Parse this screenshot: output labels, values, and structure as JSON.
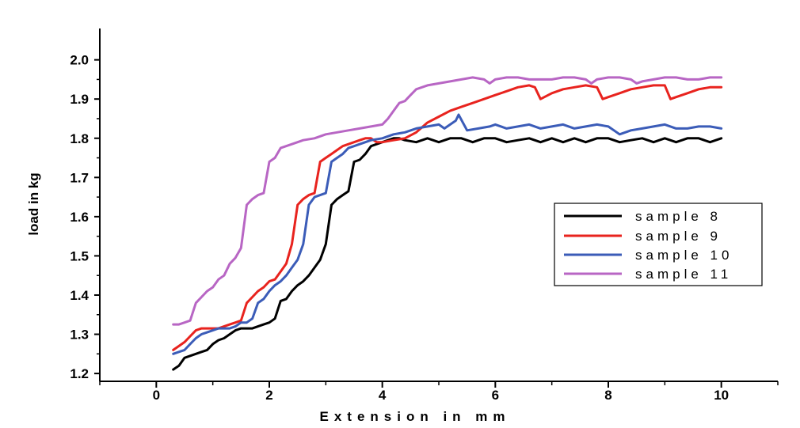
{
  "chart_data": {
    "type": "line",
    "title": "",
    "xlabel": "Extension in mm",
    "ylabel": "load in kg",
    "xlim": [
      -1,
      11
    ],
    "ylim": [
      1.18,
      2.08
    ],
    "xticks": [
      0,
      2,
      4,
      6,
      8,
      10
    ],
    "yticks": [
      1.2,
      1.3,
      1.4,
      1.5,
      1.6,
      1.7,
      1.8,
      1.9,
      2.0
    ],
    "ytick_labels": [
      "1.2",
      "1.3",
      "1.4",
      "1.5",
      "1.6",
      "1.7",
      "1.8",
      "1.9",
      "2.0"
    ],
    "legend_position": "right",
    "grid": false,
    "series": [
      {
        "name": "sample 8",
        "color": "#000000",
        "x": [
          0.3,
          0.4,
          0.5,
          0.6,
          0.7,
          0.8,
          0.9,
          1.0,
          1.1,
          1.2,
          1.3,
          1.4,
          1.5,
          1.6,
          1.7,
          1.8,
          1.9,
          2.0,
          2.1,
          2.2,
          2.3,
          2.4,
          2.5,
          2.6,
          2.7,
          2.8,
          2.9,
          3.0,
          3.1,
          3.2,
          3.3,
          3.4,
          3.5,
          3.6,
          3.7,
          3.8,
          3.9,
          4.0,
          4.1,
          4.2,
          4.3,
          4.4,
          4.6,
          4.8,
          5.0,
          5.2,
          5.4,
          5.6,
          5.8,
          6.0,
          6.2,
          6.4,
          6.6,
          6.8,
          7.0,
          7.2,
          7.4,
          7.6,
          7.8,
          8.0,
          8.2,
          8.4,
          8.6,
          8.8,
          9.0,
          9.2,
          9.4,
          9.6,
          9.8,
          10.0
        ],
        "values": [
          1.21,
          1.22,
          1.24,
          1.245,
          1.25,
          1.255,
          1.26,
          1.275,
          1.285,
          1.29,
          1.3,
          1.31,
          1.315,
          1.315,
          1.315,
          1.32,
          1.325,
          1.33,
          1.34,
          1.385,
          1.39,
          1.41,
          1.425,
          1.435,
          1.45,
          1.47,
          1.49,
          1.53,
          1.63,
          1.645,
          1.655,
          1.665,
          1.74,
          1.745,
          1.76,
          1.78,
          1.785,
          1.79,
          1.795,
          1.8,
          1.8,
          1.795,
          1.79,
          1.8,
          1.79,
          1.8,
          1.8,
          1.79,
          1.8,
          1.8,
          1.79,
          1.795,
          1.8,
          1.79,
          1.8,
          1.79,
          1.8,
          1.79,
          1.8,
          1.8,
          1.79,
          1.795,
          1.8,
          1.79,
          1.8,
          1.79,
          1.8,
          1.8,
          1.79,
          1.8
        ]
      },
      {
        "name": "sample 9",
        "color": "#e8231e",
        "x": [
          0.3,
          0.4,
          0.5,
          0.6,
          0.7,
          0.8,
          0.9,
          1.0,
          1.1,
          1.2,
          1.3,
          1.4,
          1.5,
          1.6,
          1.7,
          1.8,
          1.9,
          2.0,
          2.1,
          2.2,
          2.3,
          2.4,
          2.5,
          2.6,
          2.7,
          2.8,
          2.9,
          3.0,
          3.1,
          3.2,
          3.3,
          3.4,
          3.5,
          3.6,
          3.7,
          3.8,
          3.9,
          4.0,
          4.2,
          4.4,
          4.6,
          4.8,
          5.0,
          5.2,
          5.4,
          5.6,
          5.8,
          6.0,
          6.2,
          6.4,
          6.6,
          6.7,
          6.8,
          7.0,
          7.2,
          7.4,
          7.6,
          7.8,
          7.9,
          8.0,
          8.2,
          8.4,
          8.6,
          8.8,
          9.0,
          9.1,
          9.2,
          9.4,
          9.6,
          9.8,
          10.0
        ],
        "values": [
          1.26,
          1.27,
          1.28,
          1.295,
          1.31,
          1.315,
          1.315,
          1.315,
          1.315,
          1.32,
          1.325,
          1.33,
          1.335,
          1.38,
          1.395,
          1.41,
          1.42,
          1.435,
          1.44,
          1.46,
          1.48,
          1.53,
          1.63,
          1.645,
          1.655,
          1.66,
          1.74,
          1.75,
          1.76,
          1.77,
          1.78,
          1.785,
          1.79,
          1.795,
          1.8,
          1.8,
          1.79,
          1.79,
          1.795,
          1.8,
          1.815,
          1.84,
          1.855,
          1.87,
          1.88,
          1.89,
          1.9,
          1.91,
          1.92,
          1.93,
          1.935,
          1.93,
          1.9,
          1.915,
          1.925,
          1.93,
          1.935,
          1.93,
          1.9,
          1.905,
          1.915,
          1.925,
          1.93,
          1.935,
          1.935,
          1.9,
          1.905,
          1.915,
          1.925,
          1.93,
          1.93
        ]
      },
      {
        "name": "sample 10",
        "color": "#3b5cb8",
        "x": [
          0.3,
          0.4,
          0.5,
          0.6,
          0.7,
          0.8,
          0.9,
          1.0,
          1.1,
          1.2,
          1.3,
          1.4,
          1.5,
          1.6,
          1.7,
          1.8,
          1.9,
          2.0,
          2.1,
          2.2,
          2.3,
          2.4,
          2.5,
          2.6,
          2.7,
          2.8,
          2.9,
          3.0,
          3.1,
          3.2,
          3.3,
          3.4,
          3.5,
          3.6,
          3.7,
          3.8,
          4.0,
          4.2,
          4.4,
          4.6,
          4.8,
          5.0,
          5.1,
          5.2,
          5.3,
          5.35,
          5.5,
          5.7,
          5.9,
          6.0,
          6.2,
          6.4,
          6.6,
          6.8,
          7.0,
          7.2,
          7.4,
          7.6,
          7.8,
          8.0,
          8.2,
          8.4,
          8.6,
          8.8,
          9.0,
          9.2,
          9.4,
          9.6,
          9.8,
          10.0
        ],
        "values": [
          1.25,
          1.255,
          1.26,
          1.275,
          1.29,
          1.3,
          1.305,
          1.31,
          1.315,
          1.315,
          1.315,
          1.32,
          1.33,
          1.33,
          1.34,
          1.38,
          1.39,
          1.41,
          1.425,
          1.435,
          1.45,
          1.47,
          1.49,
          1.53,
          1.63,
          1.65,
          1.655,
          1.66,
          1.74,
          1.75,
          1.76,
          1.775,
          1.78,
          1.785,
          1.79,
          1.795,
          1.8,
          1.81,
          1.815,
          1.825,
          1.83,
          1.835,
          1.825,
          1.835,
          1.845,
          1.86,
          1.82,
          1.825,
          1.83,
          1.835,
          1.825,
          1.83,
          1.835,
          1.825,
          1.83,
          1.835,
          1.825,
          1.83,
          1.835,
          1.83,
          1.81,
          1.82,
          1.825,
          1.83,
          1.835,
          1.825,
          1.825,
          1.83,
          1.83,
          1.825
        ]
      },
      {
        "name": "sample 11",
        "color": "#b866c4",
        "x": [
          0.3,
          0.4,
          0.5,
          0.6,
          0.7,
          0.8,
          0.9,
          1.0,
          1.1,
          1.2,
          1.3,
          1.4,
          1.5,
          1.6,
          1.7,
          1.8,
          1.9,
          2.0,
          2.1,
          2.2,
          2.4,
          2.6,
          2.8,
          3.0,
          3.2,
          3.4,
          3.6,
          3.8,
          4.0,
          4.1,
          4.2,
          4.3,
          4.4,
          4.5,
          4.6,
          4.8,
          5.0,
          5.2,
          5.4,
          5.6,
          5.8,
          5.9,
          6.0,
          6.2,
          6.4,
          6.6,
          6.8,
          7.0,
          7.2,
          7.4,
          7.6,
          7.7,
          7.8,
          8.0,
          8.2,
          8.4,
          8.5,
          8.6,
          8.8,
          9.0,
          9.2,
          9.4,
          9.6,
          9.8,
          10.0
        ],
        "values": [
          1.325,
          1.325,
          1.33,
          1.335,
          1.38,
          1.395,
          1.41,
          1.42,
          1.44,
          1.45,
          1.48,
          1.495,
          1.52,
          1.63,
          1.645,
          1.655,
          1.66,
          1.74,
          1.75,
          1.775,
          1.785,
          1.795,
          1.8,
          1.81,
          1.815,
          1.82,
          1.825,
          1.83,
          1.835,
          1.85,
          1.87,
          1.89,
          1.895,
          1.91,
          1.925,
          1.935,
          1.94,
          1.945,
          1.95,
          1.955,
          1.95,
          1.94,
          1.95,
          1.955,
          1.955,
          1.95,
          1.95,
          1.95,
          1.955,
          1.955,
          1.95,
          1.94,
          1.95,
          1.955,
          1.955,
          1.95,
          1.94,
          1.945,
          1.95,
          1.955,
          1.955,
          1.95,
          1.95,
          1.955,
          1.955
        ]
      }
    ]
  }
}
